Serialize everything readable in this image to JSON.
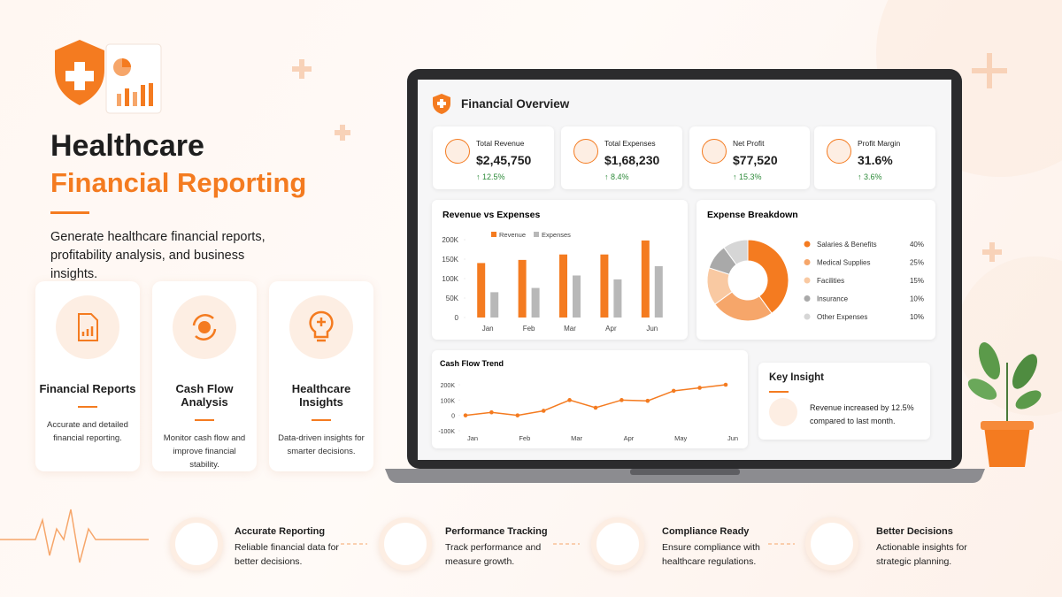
{
  "hero": {
    "title_line1": "Healthcare",
    "title_line2": "Financial Reporting",
    "description": "Generate healthcare financial reports, profitability analysis, and business insights."
  },
  "features": [
    {
      "title": "Financial Reports",
      "description": "Accurate and detailed financial reporting."
    },
    {
      "title": "Cash Flow Analysis",
      "description": "Monitor cash flow and improve financial stability."
    },
    {
      "title": "Healthcare Insights",
      "description": "Data-driven insights for smarter decisions."
    }
  ],
  "dashboard": {
    "title": "Financial Overview",
    "kpis": [
      {
        "label": "Total Revenue",
        "value": "$2,45,750",
        "change": "↑ 12.5%"
      },
      {
        "label": "Total Expenses",
        "value": "$1,68,230",
        "change": "↑ 8.4%"
      },
      {
        "label": "Net Profit",
        "value": "$77,520",
        "change": "↑ 15.3%"
      },
      {
        "label": "Profit Margin",
        "value": "31.6%",
        "change": "↑ 3.6%"
      }
    ],
    "insight": {
      "title": "Key Insight",
      "text": "Revenue increased by 12.5% compared to last month."
    }
  },
  "chart_data": [
    {
      "type": "bar",
      "title": "Revenue vs Expenses",
      "categories": [
        "Jan",
        "Feb",
        "Mar",
        "Apr",
        "Jun"
      ],
      "series": [
        {
          "name": "Revenue",
          "color": "#f47b20",
          "values": [
            140000,
            148000,
            162000,
            162000,
            198000
          ]
        },
        {
          "name": "Expenses",
          "color": "#b8b8b8",
          "values": [
            65000,
            76000,
            108000,
            98000,
            132000
          ]
        }
      ],
      "ylim": [
        0,
        200000
      ],
      "yticks": [
        0,
        {
          "value": 50000,
          "label": "50K"
        },
        {
          "value": 100000,
          "label": "100K"
        },
        {
          "value": 150000,
          "label": "150K"
        },
        {
          "value": 200000,
          "label": "200K"
        }
      ]
    },
    {
      "type": "pie",
      "title": "Expense Breakdown",
      "categories": [
        "Salaries & Benefits",
        "Medical Supplies",
        "Facilities",
        "Insurance",
        "Other Expenses"
      ],
      "values": [
        40,
        25,
        15,
        10,
        10
      ],
      "value_labels": [
        "40%",
        "25%",
        "15%",
        "10%",
        "10%"
      ],
      "colors": [
        "#f47b20",
        "#f6a66a",
        "#f9c9a2",
        "#a9a9a9",
        "#d6d6d6"
      ]
    },
    {
      "type": "line",
      "title": "Cash Flow Trend",
      "categories": [
        "Jan",
        null,
        "Feb",
        null,
        "Mar",
        null,
        "Apr",
        null,
        "May",
        null,
        "Jun"
      ],
      "values": [
        0,
        20000,
        0,
        30000,
        100000,
        50000,
        100000,
        95000,
        160000,
        180000,
        200000
      ],
      "color": "#f47b20",
      "ylim": [
        -100000,
        200000
      ],
      "yticks": [
        {
          "value": -100000,
          "label": "-100K"
        },
        0,
        {
          "value": 100000,
          "label": "100K"
        },
        {
          "value": 200000,
          "label": "200K"
        }
      ]
    }
  ],
  "benefits": [
    {
      "title": "Accurate Reporting",
      "description": "Reliable financial data for better decisions."
    },
    {
      "title": "Performance Tracking",
      "description": "Track performance and measure growth."
    },
    {
      "title": "Compliance Ready",
      "description": "Ensure compliance with healthcare regulations."
    },
    {
      "title": "Better Decisions",
      "description": "Actionable insights for strategic planning."
    }
  ]
}
